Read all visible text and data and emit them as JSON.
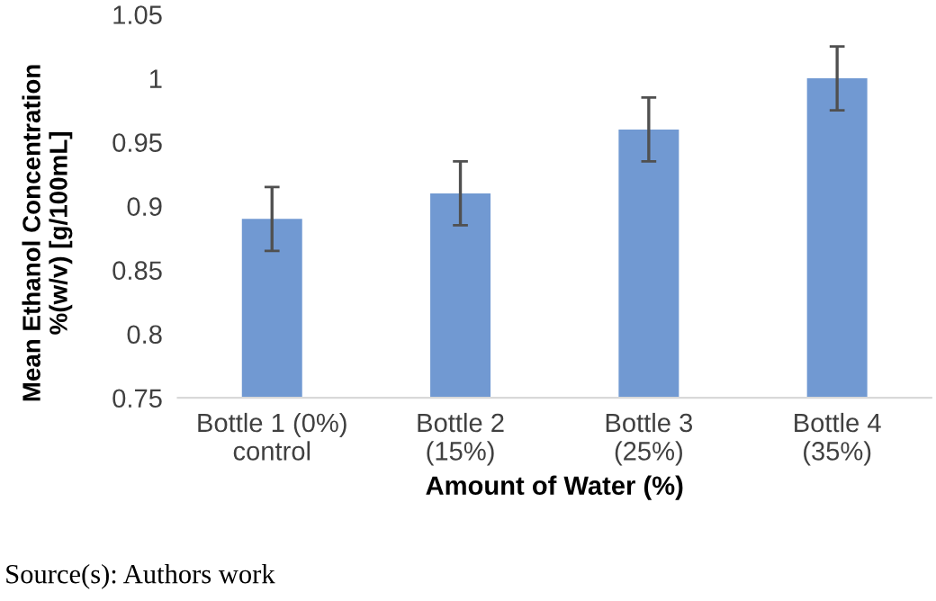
{
  "chart_data": {
    "type": "bar",
    "xlabel": "Amount of Water (%)",
    "ylabel": "Mean Ethanol Concentration\n%(w/v) [g/100mL]",
    "categories": [
      "Bottle 1 (0%)\ncontrol",
      "Bottle 2\n(15%)",
      "Bottle 3\n(25%)",
      "Bottle 4\n(35%)"
    ],
    "values": [
      0.89,
      0.91,
      0.96,
      1.0
    ],
    "errors": [
      0.025,
      0.025,
      0.025,
      0.025
    ],
    "color": "#7199d2",
    "ylim": [
      0.75,
      1.05
    ],
    "yticks": [
      0.75,
      0.8,
      0.85,
      0.9,
      0.95,
      1,
      1.05
    ],
    "grid": false,
    "legend": false,
    "annotations": [
      "Source(s): Authors work"
    ]
  }
}
